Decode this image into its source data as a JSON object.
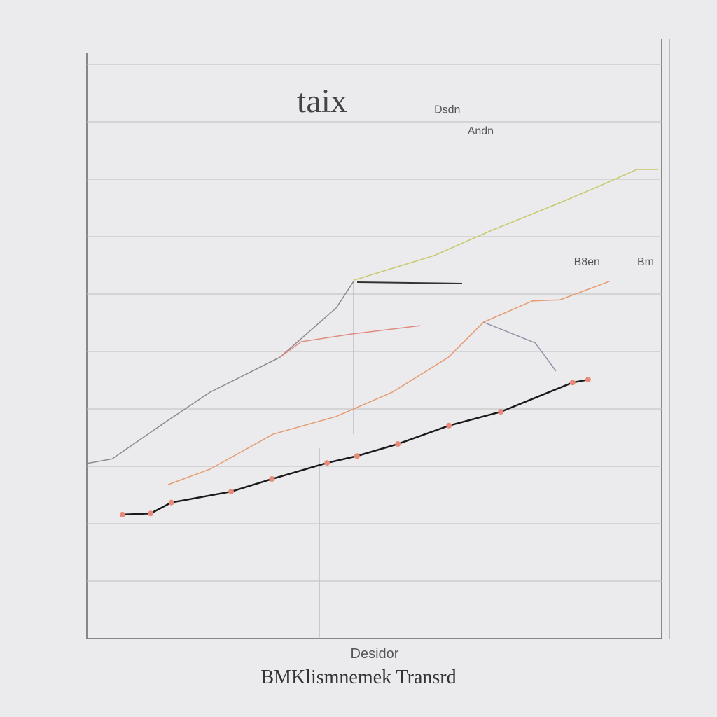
{
  "chart_data": {
    "type": "line",
    "title": "taix",
    "xlabel": "Desidor",
    "caption": "BMKlismnemek Transrd",
    "annotations": [
      {
        "text": "Dsdn",
        "x": 62.7,
        "y": 91.5
      },
      {
        "text": "Andn",
        "x": 68.5,
        "y": 87.8
      },
      {
        "text": "B8en",
        "x": 87,
        "y": 65
      },
      {
        "text": "Bm",
        "x": 97.2,
        "y": 65
      }
    ],
    "xlim": [
      0,
      100
    ],
    "ylim": [
      0,
      100
    ],
    "yticks": [
      10,
      20,
      30,
      40,
      50,
      60,
      70,
      80,
      90,
      100
    ],
    "grid": true,
    "series": [
      {
        "color": "#1a1a1a",
        "markers": true,
        "x": [
          6.2,
          11.1,
          14.7,
          25.1,
          32.2,
          41.8,
          47,
          54.1,
          63,
          72,
          84.5,
          87.2
        ],
        "values": [
          21.6,
          21.8,
          23.7,
          25.6,
          27.8,
          30.6,
          31.8,
          33.9,
          37.1,
          39.5,
          44.6,
          45.1
        ]
      },
      {
        "color": "#8a8a8a",
        "markers": false,
        "x": [
          0,
          4.4,
          14.1,
          21.4,
          33.6,
          43.4,
          46.4
        ],
        "values": [
          30.5,
          31.3,
          38,
          42.9,
          49,
          57.6,
          62.2
        ]
      },
      {
        "color": "#c8c86a",
        "markers": false,
        "x": [
          46.4,
          50.6,
          60.4,
          70.2,
          82.3,
          89.6,
          95.7,
          99.4
        ],
        "values": [
          62.4,
          63.7,
          66.7,
          71,
          75.9,
          79,
          81.7,
          81.7
        ]
      },
      {
        "color": "#e69a70",
        "markers": false,
        "x": [
          14.1,
          21.4,
          32.4,
          43.4,
          53.1,
          62.9,
          69,
          77.5,
          82.3,
          90.9
        ],
        "values": [
          26.8,
          29.5,
          35.6,
          38.7,
          42.9,
          49,
          55.1,
          58.8,
          59,
          62.2
        ]
      },
      {
        "color": "#e08a80",
        "markers": false,
        "x": [
          33.6,
          37.3,
          45.8,
          58
        ],
        "values": [
          49,
          51.7,
          53,
          54.5
        ]
      },
      {
        "color": "#9a90a8",
        "markers": false,
        "x": [
          69,
          78,
          81.6
        ],
        "values": [
          55.1,
          51.5,
          46.6
        ]
      }
    ]
  }
}
